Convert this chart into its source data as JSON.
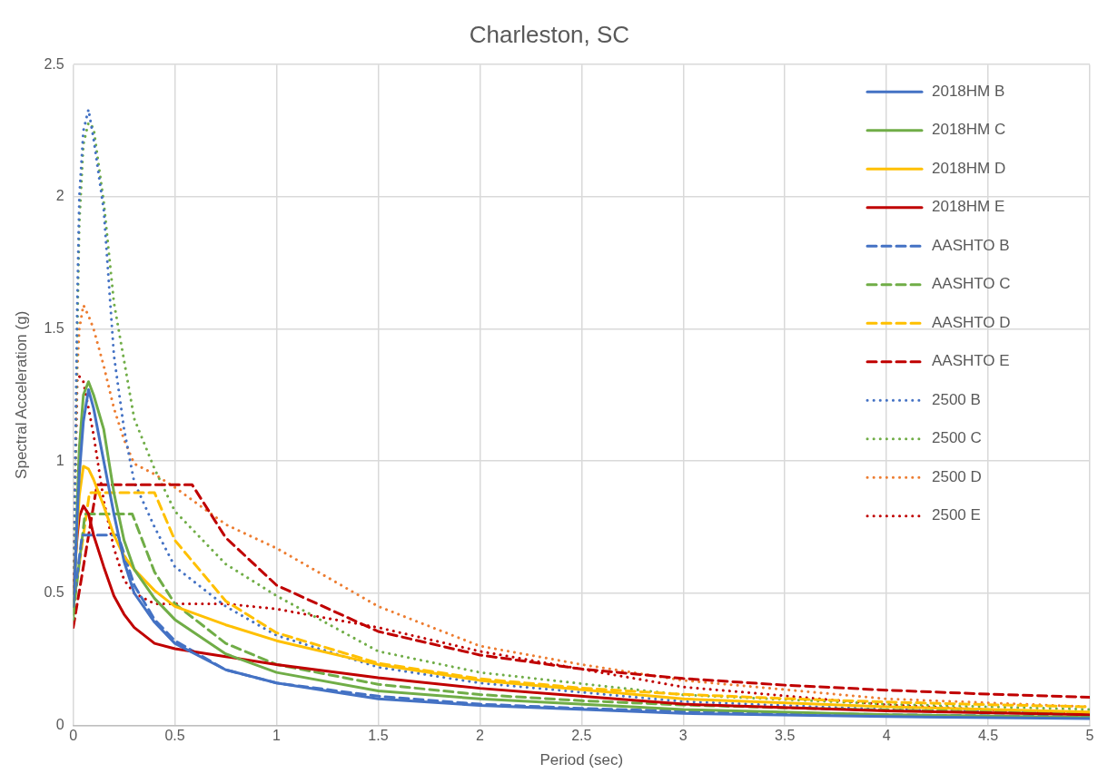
{
  "chart_data": {
    "type": "line",
    "title": "Charleston, SC",
    "xlabel": "Period (sec)",
    "ylabel": "Spectral Acceleration (g)",
    "xlim": [
      0,
      5
    ],
    "xticks": [
      0,
      0.5,
      1,
      1.5,
      2,
      2.5,
      3,
      3.5,
      4,
      4.5,
      5
    ],
    "ylim": [
      0,
      2.5
    ],
    "yticks": [
      0,
      0.5,
      1,
      1.5,
      2,
      2.5
    ],
    "grid": true,
    "legend": "top right",
    "marker": "none",
    "series": [
      {
        "name": "2018HM B",
        "color": "#4472c4",
        "line_style": "solid",
        "x": [
          0,
          0.01,
          0.02,
          0.03,
          0.05,
          0.075,
          0.1,
          0.15,
          0.2,
          0.25,
          0.3,
          0.4,
          0.5,
          0.75,
          1,
          1.5,
          2,
          3,
          4,
          5
        ],
        "values": [
          0.45,
          0.6,
          0.8,
          0.95,
          1.15,
          1.27,
          1.2,
          1.0,
          0.8,
          0.62,
          0.5,
          0.39,
          0.31,
          0.21,
          0.16,
          0.1,
          0.075,
          0.045,
          0.033,
          0.025
        ]
      },
      {
        "name": "2018HM C",
        "color": "#70ad47",
        "line_style": "solid",
        "x": [
          0,
          0.01,
          0.02,
          0.03,
          0.05,
          0.075,
          0.1,
          0.15,
          0.2,
          0.25,
          0.3,
          0.4,
          0.5,
          0.75,
          1,
          1.5,
          2,
          3,
          4,
          5
        ],
        "values": [
          0.4,
          0.6,
          0.85,
          1.05,
          1.25,
          1.3,
          1.25,
          1.12,
          0.88,
          0.7,
          0.59,
          0.48,
          0.4,
          0.27,
          0.2,
          0.13,
          0.1,
          0.06,
          0.04,
          0.03
        ]
      },
      {
        "name": "2018HM D",
        "color": "#ffc000",
        "line_style": "solid",
        "x": [
          0,
          0.01,
          0.02,
          0.03,
          0.05,
          0.075,
          0.1,
          0.15,
          0.2,
          0.25,
          0.3,
          0.4,
          0.5,
          0.75,
          1,
          1.5,
          2,
          3,
          4,
          5
        ],
        "values": [
          0.45,
          0.6,
          0.75,
          0.87,
          0.98,
          0.97,
          0.93,
          0.83,
          0.72,
          0.64,
          0.59,
          0.51,
          0.45,
          0.38,
          0.32,
          0.23,
          0.17,
          0.1,
          0.07,
          0.05
        ]
      },
      {
        "name": "2018HM E",
        "color": "#c00000",
        "line_style": "solid",
        "x": [
          0,
          0.01,
          0.02,
          0.03,
          0.05,
          0.075,
          0.1,
          0.15,
          0.2,
          0.25,
          0.3,
          0.4,
          0.5,
          0.75,
          1,
          1.5,
          2,
          3,
          4,
          5
        ],
        "values": [
          0.5,
          0.62,
          0.72,
          0.79,
          0.83,
          0.8,
          0.72,
          0.6,
          0.49,
          0.42,
          0.37,
          0.31,
          0.29,
          0.26,
          0.23,
          0.18,
          0.14,
          0.08,
          0.055,
          0.04
        ]
      },
      {
        "name": "AASHTO B",
        "color": "#4472c4",
        "line_style": "dashed",
        "x": [
          0,
          0.044,
          0.22,
          0.3,
          0.4,
          0.5,
          0.75,
          1,
          1.5,
          2,
          2.5,
          3,
          3.5,
          4,
          4.5,
          5
        ],
        "values": [
          0.45,
          0.72,
          0.72,
          0.53,
          0.4,
          0.32,
          0.21,
          0.16,
          0.11,
          0.08,
          0.064,
          0.053,
          0.046,
          0.04,
          0.036,
          0.032
        ]
      },
      {
        "name": "AASHTO C",
        "color": "#70ad47",
        "line_style": "dashed",
        "x": [
          0,
          0.058,
          0.29,
          0.4,
          0.5,
          0.75,
          1,
          1.5,
          2,
          2.5,
          3,
          3.5,
          4,
          4.5,
          5
        ],
        "values": [
          0.42,
          0.8,
          0.8,
          0.58,
          0.46,
          0.31,
          0.23,
          0.155,
          0.116,
          0.093,
          0.077,
          0.066,
          0.058,
          0.052,
          0.046
        ]
      },
      {
        "name": "AASHTO D",
        "color": "#ffc000",
        "line_style": "dashed",
        "x": [
          0,
          0.08,
          0.4,
          0.5,
          0.75,
          1,
          1.5,
          2,
          2.5,
          3,
          3.5,
          4,
          4.5,
          5
        ],
        "values": [
          0.45,
          0.88,
          0.88,
          0.7,
          0.47,
          0.35,
          0.235,
          0.176,
          0.141,
          0.117,
          0.101,
          0.088,
          0.078,
          0.07
        ]
      },
      {
        "name": "AASHTO E",
        "color": "#c00000",
        "line_style": "dashed",
        "x": [
          0,
          0.117,
          0.585,
          0.75,
          1,
          1.5,
          2,
          2.5,
          3,
          3.5,
          4,
          4.5,
          5
        ],
        "values": [
          0.37,
          0.91,
          0.91,
          0.71,
          0.53,
          0.355,
          0.266,
          0.213,
          0.177,
          0.152,
          0.133,
          0.118,
          0.106
        ]
      },
      {
        "name": "2500 B",
        "color": "#4472c4",
        "line_style": "dotted",
        "x": [
          0,
          0.01,
          0.02,
          0.03,
          0.05,
          0.075,
          0.1,
          0.15,
          0.2,
          0.25,
          0.3,
          0.4,
          0.5,
          0.75,
          1,
          1.5,
          2,
          3,
          4,
          5
        ],
        "values": [
          0.5,
          1.0,
          1.6,
          2.0,
          2.25,
          2.33,
          2.22,
          1.95,
          1.4,
          1.12,
          0.92,
          0.75,
          0.6,
          0.45,
          0.34,
          0.22,
          0.16,
          0.09,
          0.06,
          0.045
        ]
      },
      {
        "name": "2500 C",
        "color": "#70ad47",
        "line_style": "dotted",
        "x": [
          0,
          0.01,
          0.02,
          0.03,
          0.05,
          0.075,
          0.1,
          0.15,
          0.2,
          0.25,
          0.3,
          0.4,
          0.5,
          0.75,
          1,
          1.5,
          2,
          3,
          4,
          5
        ],
        "values": [
          0.45,
          0.9,
          1.5,
          1.9,
          2.2,
          2.28,
          2.26,
          1.98,
          1.6,
          1.38,
          1.16,
          0.97,
          0.81,
          0.61,
          0.49,
          0.28,
          0.2,
          0.115,
          0.08,
          0.06
        ]
      },
      {
        "name": "2500 D",
        "color": "#ed7d31",
        "line_style": "dotted",
        "x": [
          0,
          0.01,
          0.02,
          0.03,
          0.05,
          0.075,
          0.1,
          0.15,
          0.2,
          0.25,
          0.3,
          0.4,
          0.5,
          0.75,
          1,
          1.5,
          2,
          2.5,
          3,
          4,
          5
        ],
        "values": [
          0.5,
          1.0,
          1.35,
          1.5,
          1.59,
          1.55,
          1.5,
          1.36,
          1.2,
          1.08,
          0.99,
          0.95,
          0.9,
          0.76,
          0.67,
          0.45,
          0.3,
          0.23,
          0.17,
          0.1,
          0.07
        ]
      },
      {
        "name": "2500 E",
        "color": "#c00000",
        "line_style": "dotted",
        "x": [
          0,
          0.02,
          0.03,
          0.05,
          0.075,
          0.1,
          0.15,
          0.2,
          0.25,
          0.3,
          0.4,
          0.5,
          0.75,
          1,
          1.5,
          2,
          3,
          4,
          5
        ],
        "values": [
          0.5,
          1.32,
          1.32,
          1.3,
          1.2,
          1.1,
          0.85,
          0.67,
          0.55,
          0.5,
          0.46,
          0.46,
          0.46,
          0.44,
          0.37,
          0.28,
          0.145,
          0.078,
          0.04
        ]
      }
    ]
  }
}
